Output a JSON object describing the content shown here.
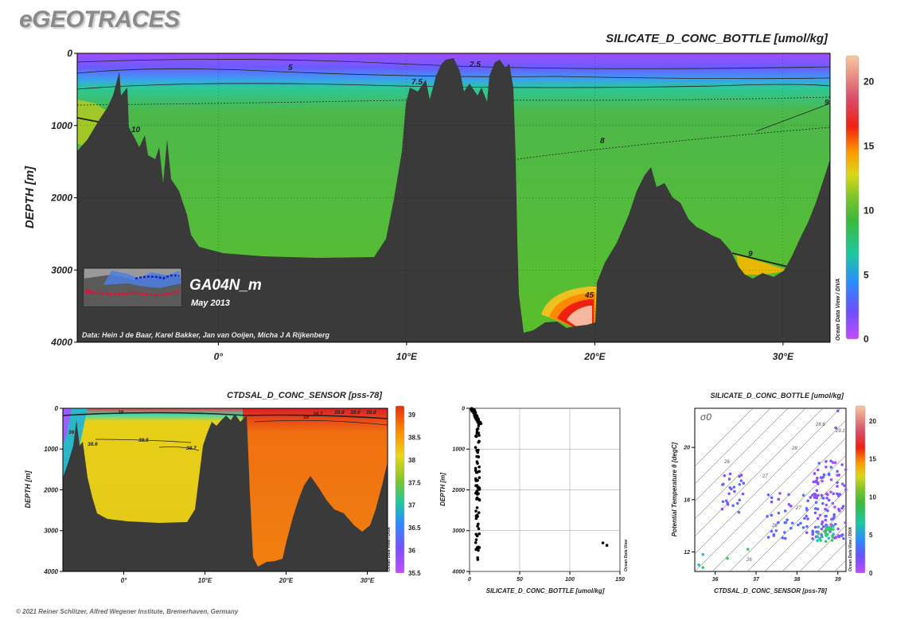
{
  "brand": "eGEOTRACES",
  "credit": "© 2021 Reiner Schlitzer, Alfred Wegener Institute, Bremerhaven, Germany",
  "colors": {
    "land": "#3a3a3a",
    "background": "#ffffff"
  },
  "chart_data": [
    {
      "id": "main-section",
      "type": "heatmap",
      "title": "SILICATE_D_CONC_BOTTLE [umol/kg]",
      "xlabel": "",
      "ylabel": "DEPTH [m]",
      "x_ticks": [
        "0°",
        "10°E",
        "20°E",
        "30°E"
      ],
      "x_tick_values": [
        0,
        10,
        20,
        30
      ],
      "xlim": [
        -7.5,
        32.5
      ],
      "y_ticks": [
        "0",
        "1000",
        "2000",
        "3000",
        "4000"
      ],
      "y_tick_values": [
        0,
        1000,
        2000,
        3000,
        4000
      ],
      "ylim": [
        4000,
        0
      ],
      "colorbar_ticks": [
        "0",
        "5",
        "10",
        "15",
        "20"
      ],
      "colorbar_values": [
        0,
        5,
        10,
        15,
        20
      ],
      "colorbar_range": [
        0,
        22
      ],
      "contour_labels": [
        "5",
        "2.5",
        "7.5",
        "10",
        "8",
        "9",
        "9",
        "45"
      ],
      "section_name": "GA04N_m",
      "section_date": "May 2013",
      "data_credit": "Data: Hein J de Baar, Karel Bakker, Jan van Ooijen, Micha J A Rijkenberg",
      "odv_label": "Ocean Data View / DIVA"
    },
    {
      "id": "salinity-section",
      "type": "heatmap",
      "title": "CTDSAL_D_CONC_SENSOR [pss-78]",
      "xlabel": "",
      "ylabel": "DEPTH [m]",
      "x_ticks": [
        "0°",
        "10°E",
        "20°E",
        "30°E"
      ],
      "x_tick_values": [
        0,
        10,
        20,
        30
      ],
      "xlim": [
        -7.5,
        32.5
      ],
      "y_ticks": [
        "0",
        "1000",
        "2000",
        "3000",
        "4000"
      ],
      "y_tick_values": [
        0,
        1000,
        2000,
        3000,
        4000
      ],
      "ylim": [
        4000,
        0
      ],
      "colorbar_ticks": [
        "39",
        "38.5",
        "38",
        "37.5",
        "37",
        "36.5",
        "36",
        "35.5"
      ],
      "colorbar_values": [
        39,
        38.5,
        38,
        37.5,
        37,
        36.5,
        36,
        35.5
      ],
      "colorbar_range": [
        35.5,
        39.2
      ],
      "contour_labels": [
        "38",
        "38.7",
        "38.5",
        "39",
        "38.7",
        "38.8",
        "38.6",
        "38.8",
        "36",
        "38.6"
      ],
      "odv_label": "Ocean Data View / DIVA"
    },
    {
      "id": "profile-scatter",
      "type": "scatter",
      "title": "",
      "xlabel": "SILICATE_D_CONC_BOTTLE [umol/kg]",
      "ylabel": "DEPTH [m]",
      "x_ticks": [
        "0",
        "50",
        "100",
        "150"
      ],
      "x_tick_values": [
        0,
        50,
        100,
        150
      ],
      "xlim": [
        0,
        150
      ],
      "y_ticks": [
        "0",
        "1000",
        "2000",
        "3000",
        "4000"
      ],
      "y_tick_values": [
        0,
        1000,
        2000,
        3000,
        4000
      ],
      "ylim": [
        4000,
        0
      ],
      "grid": true,
      "odv_label": "Ocean Data View"
    },
    {
      "id": "ts-scatter",
      "type": "scatter",
      "title": "SILICATE_D_CONC_BOTTLE [umol/kg]",
      "xlabel": "CTDSAL_D_CONC_SENSOR [pss-78]",
      "ylabel": "Potential Temperature θ [degC]",
      "x_ticks": [
        "36",
        "37",
        "38",
        "39"
      ],
      "x_tick_values": [
        36,
        37,
        38,
        39
      ],
      "xlim": [
        35.5,
        39.2
      ],
      "y_ticks": [
        "12",
        "16",
        "20"
      ],
      "y_tick_values": [
        12,
        16,
        20
      ],
      "ylim": [
        10.5,
        23
      ],
      "sigma_label": "σ0",
      "isopycnal_labels": [
        "26",
        "27",
        "28",
        "28.6",
        "29.1",
        "26",
        "27",
        "26"
      ],
      "colorbar_ticks": [
        "0",
        "5",
        "10",
        "15",
        "20"
      ],
      "colorbar_values": [
        0,
        5,
        10,
        15,
        20
      ],
      "colorbar_range": [
        0,
        22
      ],
      "odv_label": "Ocean Data View / DIVA"
    }
  ]
}
